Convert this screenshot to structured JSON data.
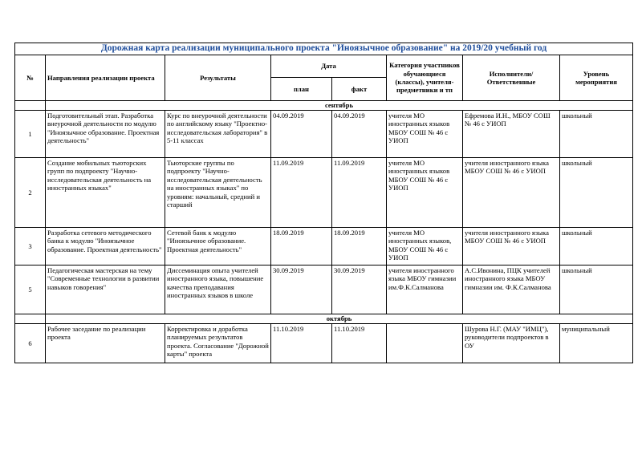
{
  "title": "Дорожная карта реализации муниципального проекта \"Иноязычное образование\" на 2019/20 учебный год",
  "headers": {
    "num": "№",
    "direction": "Направления реализации проекта",
    "results": "Результаты",
    "date": "Дата",
    "plan": "план",
    "fact": "факт",
    "category": "Категория участников обучающиеся (классы), учителя-предметники и тп",
    "executors": "Исполнители/ Ответственные",
    "level": "Уровень мероприятия"
  },
  "months": [
    "сентябрь",
    "октябрь"
  ],
  "rows": [
    {
      "num": "1",
      "direction": "Подготовительный этап. Разработка внеурочной деятельности по модулю \"Иноязычное образование. Проектная деятельность\"",
      "results": "Курс по внеурочной деятельности по английскому языку \"Проектно-исследовательская лаборатория\" в 5-11 классах",
      "plan": "04.09.2019",
      "fact": "04.09.2019",
      "category": "учителя МО иностранных языков МБОУ СОШ № 46 с УИОП",
      "executors": "Ефремова И.Н., МБОУ СОШ № 46 с УИОП",
      "level": "школьный"
    },
    {
      "num": "2",
      "direction": "Создание мобильных тьюторских групп по подпроекту \"Научно-исследовательская деятельность на иностранных языках\"",
      "results": "Тьюторские группы по подпроекту \"Научно-исследовательская деятельность на иностранных языках\" по уровням: начальный, средний и старший",
      "plan": "11.09.2019",
      "fact": "11.09.2019",
      "category": "учителя МО иностранных языков МБОУ СОШ № 46 с УИОП",
      "executors": "учителя иностранного языка МБОУ СОШ № 46 с УИОП",
      "level": "школьный"
    },
    {
      "num": "3",
      "direction": "Разработка сетевого методического банка к модулю \"Иноязычное образование. Проектная деятельность\"",
      "results": "Сетевой банк к модулю \"Иноязычное образование. Проектная деятельность\"",
      "plan": "18.09.2019",
      "fact": "18.09.2019",
      "category": "учителя МО иностранных языков, МБОУ СОШ № 46 с УИОП",
      "executors": "учителя иностранного языка МБОУ СОШ № 46 с УИОП",
      "level": "школьный"
    },
    {
      "num": "5",
      "direction": "Педагогическая мастерская на тему \"Современные технологии в развитии навыков говорения\"",
      "results": "Диссеминация опыта учителей иностранного языка, повышение качества преподавания иностранных языков в школе",
      "plan": "30.09.2019",
      "fact": "30.09.2019",
      "category": "учителя иностранного языка МБОУ гимназии им.Ф.К.Салманова",
      "executors": "А.С.Ивонина, ПЦК учителей иностранного языка МБОУ гимназии им. Ф.К.Салманова",
      "level": "школьный"
    },
    {
      "num": "6",
      "direction": "Рабочее заседание по реализации проекта",
      "results": "Корректировка и доработка планируемых результатов проекта. Согласование \"Дорожной карты\" проекта",
      "plan": "11.10.2019",
      "fact": "11.10.2019",
      "category": "",
      "executors": "Шурова Н.Г. (МАУ \"ИМЦ\"), руководители подпроектов в ОУ",
      "level": "муниципальный"
    }
  ]
}
